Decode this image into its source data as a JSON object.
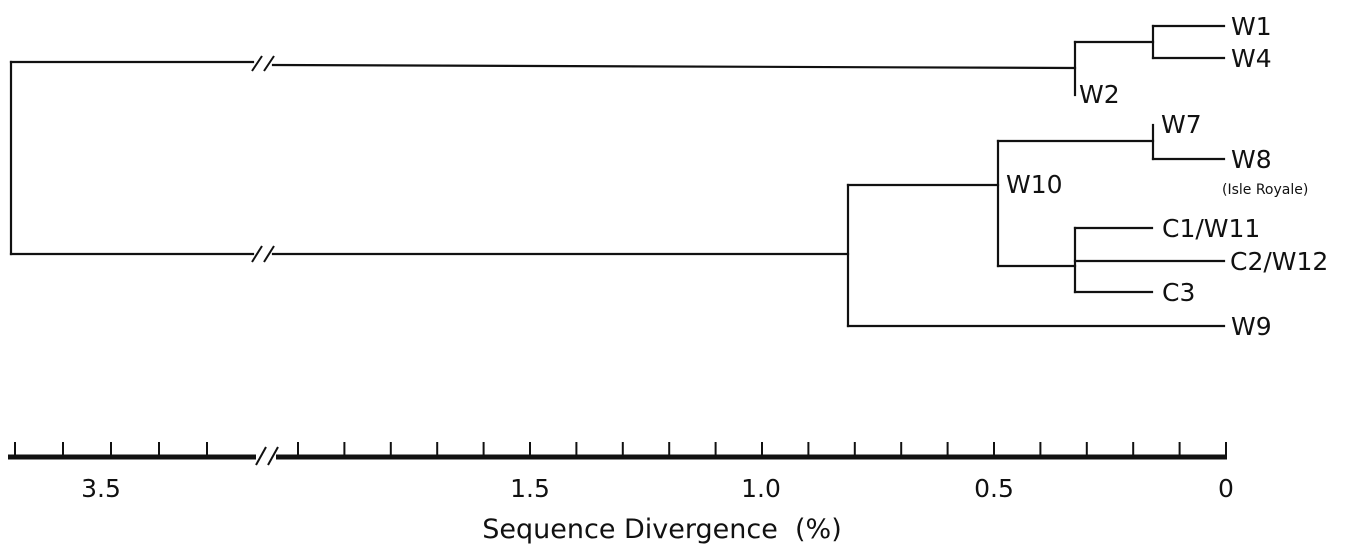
{
  "tree": {
    "tip_labels": {
      "w1": "W1",
      "w4": "W4",
      "w2": "W2",
      "w7": "W7",
      "w8": "W8",
      "w8_note": "(Isle Royale)",
      "w10": "W10",
      "c1": "C1/W11",
      "c2": "C2/W12",
      "c3": "C3",
      "w9": "W9"
    }
  },
  "axis": {
    "title": "Sequence Divergence  (%)",
    "tick_labels": {
      "t35": "3.5",
      "t15": "1.5",
      "t10": "1.0",
      "t05": "0.5",
      "t0": "0"
    },
    "break_symbol": "//",
    "major_ticks_percent": [
      1.5,
      1.0,
      0.5,
      0
    ],
    "minor_tick_step_percent": 0.1
  },
  "colors": {
    "ink": "#111111",
    "background": "#ffffff"
  }
}
